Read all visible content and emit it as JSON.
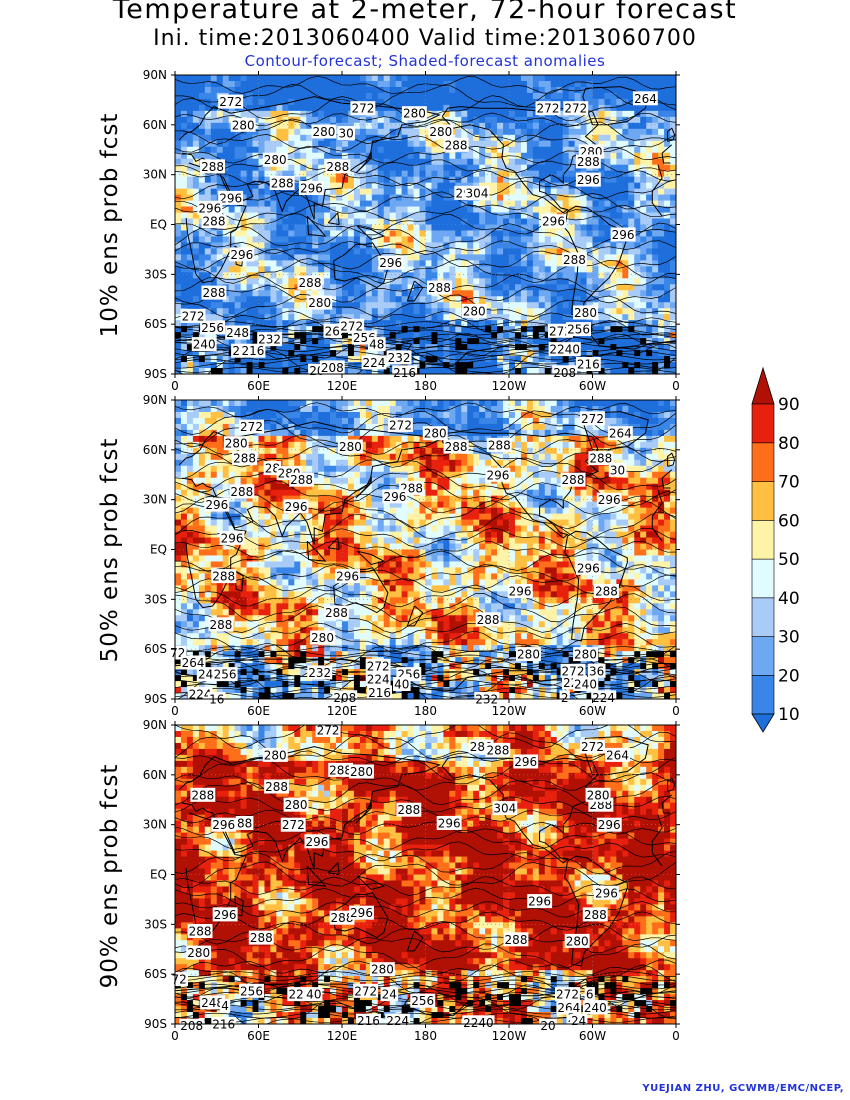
{
  "header": {
    "title": "Temperature at 2-meter, 72-hour forecast",
    "subtitle": "Ini. time:2013060400    Valid time:2013060700",
    "caption": "Contour-forecast; Shaded-forecast anomalies"
  },
  "credit": "YUEJIAN ZHU, GCWMB/EMC/NCEP,",
  "colors": {
    "scale": [
      "#1e6fdc",
      "#3a86e8",
      "#6ea8f2",
      "#a8cbf8",
      "#e0fcff",
      "#fff3a8",
      "#ffbf40",
      "#ff6f1a",
      "#e8210e",
      "#b11005"
    ],
    "caption_text": "#2233dd"
  },
  "chart_data": {
    "type": "heatmap",
    "projection": "cylindrical-equidistant",
    "x_ticks": [
      "0",
      "60E",
      "120E",
      "180",
      "120W",
      "60W",
      "0"
    ],
    "y_ticks": [
      "90N",
      "60N",
      "30N",
      "EQ",
      "30S",
      "60S",
      "90S"
    ],
    "colorbar": {
      "levels": [
        10,
        20,
        30,
        40,
        50,
        60,
        70,
        80,
        90
      ],
      "tick_labels": [
        "10",
        "20",
        "30",
        "40",
        "50",
        "60",
        "70",
        "80",
        "90"
      ],
      "extend": "both"
    },
    "panels": [
      {
        "label": "10% ens prob fcst",
        "contour_labels": [
          {
            "t": "272",
            "lon": 40,
            "lat": 74
          },
          {
            "t": "272",
            "lon": 135,
            "lat": 70
          },
          {
            "t": "280",
            "lon": 172,
            "lat": 67
          },
          {
            "t": "272",
            "lon": 268,
            "lat": 70
          },
          {
            "t": "272",
            "lon": 288,
            "lat": 70
          },
          {
            "t": "264",
            "lon": 338,
            "lat": 76
          },
          {
            "t": "280",
            "lon": 49,
            "lat": 60
          },
          {
            "t": "280",
            "lon": 107,
            "lat": 56
          },
          {
            "t": "30",
            "lon": 123,
            "lat": 55
          },
          {
            "t": "280",
            "lon": 191,
            "lat": 56
          },
          {
            "t": "288",
            "lon": 202,
            "lat": 48
          },
          {
            "t": "280",
            "lon": 299,
            "lat": 44
          },
          {
            "t": "280",
            "lon": 72,
            "lat": 39
          },
          {
            "t": "288",
            "lon": 27,
            "lat": 35
          },
          {
            "t": "288",
            "lon": 117,
            "lat": 35
          },
          {
            "t": "288",
            "lon": 297,
            "lat": 38
          },
          {
            "t": "288",
            "lon": 77,
            "lat": 25
          },
          {
            "t": "296",
            "lon": 98,
            "lat": 22
          },
          {
            "t": "296",
            "lon": 297,
            "lat": 27
          },
          {
            "t": "296",
            "lon": 40,
            "lat": 16
          },
          {
            "t": "29",
            "lon": 207,
            "lat": 19
          },
          {
            "t": "304",
            "lon": 217,
            "lat": 19
          },
          {
            "t": "296",
            "lon": 25,
            "lat": 10
          },
          {
            "t": "288",
            "lon": 28,
            "lat": 2
          },
          {
            "t": "296",
            "lon": 272,
            "lat": 2
          },
          {
            "t": "296",
            "lon": 322,
            "lat": -6
          },
          {
            "t": "296",
            "lon": 48,
            "lat": -18
          },
          {
            "t": "296",
            "lon": 155,
            "lat": -23
          },
          {
            "t": "288",
            "lon": 287,
            "lat": -21
          },
          {
            "t": "288",
            "lon": 97,
            "lat": -35
          },
          {
            "t": "288",
            "lon": 190,
            "lat": -38
          },
          {
            "t": "288",
            "lon": 28,
            "lat": -41
          },
          {
            "t": "280",
            "lon": 104,
            "lat": -47
          },
          {
            "t": "280",
            "lon": 215,
            "lat": -52
          },
          {
            "t": "280",
            "lon": 295,
            "lat": -53
          },
          {
            "t": "272",
            "lon": 13,
            "lat": -55
          },
          {
            "t": "256",
            "lon": 27,
            "lat": -62
          },
          {
            "t": "248",
            "lon": 45,
            "lat": -65
          },
          {
            "t": "232",
            "lon": 68,
            "lat": -69
          },
          {
            "t": "26",
            "lon": 113,
            "lat": -64
          },
          {
            "t": "272",
            "lon": 127,
            "lat": -61
          },
          {
            "t": "256",
            "lon": 136,
            "lat": -68
          },
          {
            "t": "48",
            "lon": 145,
            "lat": -72
          },
          {
            "t": "272",
            "lon": 277,
            "lat": -64
          },
          {
            "t": "256",
            "lon": 290,
            "lat": -63
          },
          {
            "t": "240",
            "lon": 21,
            "lat": -72
          },
          {
            "t": "2",
            "lon": 44,
            "lat": -76
          },
          {
            "t": "216",
            "lon": 56,
            "lat": -76
          },
          {
            "t": "224",
            "lon": 143,
            "lat": -83
          },
          {
            "t": "232",
            "lon": 161,
            "lat": -80
          },
          {
            "t": "2240",
            "lon": 280,
            "lat": -75
          },
          {
            "t": "216",
            "lon": 297,
            "lat": -84
          },
          {
            "t": "20",
            "lon": 102,
            "lat": -88
          },
          {
            "t": "208",
            "lon": 113,
            "lat": -86
          },
          {
            "t": "216",
            "lon": 165,
            "lat": -89
          },
          {
            "t": "208",
            "lon": 280,
            "lat": -89
          }
        ]
      },
      {
        "label": "50% ens prob fcst",
        "contour_labels": [
          {
            "t": "272",
            "lon": 55,
            "lat": 74
          },
          {
            "t": "272",
            "lon": 162,
            "lat": 75
          },
          {
            "t": "280",
            "lon": 187,
            "lat": 70
          },
          {
            "t": "272",
            "lon": 300,
            "lat": 79
          },
          {
            "t": "264",
            "lon": 320,
            "lat": 70
          },
          {
            "t": "280",
            "lon": 44,
            "lat": 64
          },
          {
            "t": "280",
            "lon": 126,
            "lat": 62
          },
          {
            "t": "288",
            "lon": 202,
            "lat": 62
          },
          {
            "t": "288",
            "lon": 50,
            "lat": 55
          },
          {
            "t": "28",
            "lon": 70,
            "lat": 49
          },
          {
            "t": "280",
            "lon": 82,
            "lat": 46
          },
          {
            "t": "288",
            "lon": 233,
            "lat": 63
          },
          {
            "t": "288",
            "lon": 306,
            "lat": 55
          },
          {
            "t": "30",
            "lon": 318,
            "lat": 48
          },
          {
            "t": "296",
            "lon": 232,
            "lat": 45
          },
          {
            "t": "288",
            "lon": 286,
            "lat": 42
          },
          {
            "t": "288",
            "lon": 91,
            "lat": 42
          },
          {
            "t": "288",
            "lon": 170,
            "lat": 37
          },
          {
            "t": "296",
            "lon": 158,
            "lat": 32
          },
          {
            "t": "288",
            "lon": 48,
            "lat": 35
          },
          {
            "t": "296",
            "lon": 30,
            "lat": 27
          },
          {
            "t": "296",
            "lon": 87,
            "lat": 26
          },
          {
            "t": "296",
            "lon": 312,
            "lat": 30
          },
          {
            "t": "296",
            "lon": 41,
            "lat": 7
          },
          {
            "t": "288",
            "lon": 35,
            "lat": -16
          },
          {
            "t": "296",
            "lon": 124,
            "lat": -16
          },
          {
            "t": "296",
            "lon": 297,
            "lat": -11
          },
          {
            "t": "296",
            "lon": 248,
            "lat": -25
          },
          {
            "t": "288",
            "lon": 310,
            "lat": -25
          },
          {
            "t": "288",
            "lon": 116,
            "lat": -38
          },
          {
            "t": "288",
            "lon": 225,
            "lat": -42
          },
          {
            "t": "288",
            "lon": 33,
            "lat": -45
          },
          {
            "t": "280",
            "lon": 106,
            "lat": -53
          },
          {
            "t": "280",
            "lon": 254,
            "lat": -63
          },
          {
            "t": "280",
            "lon": 295,
            "lat": -63
          },
          {
            "t": "72",
            "lon": 2,
            "lat": -62
          },
          {
            "t": "264",
            "lon": 13,
            "lat": -68
          },
          {
            "t": "24",
            "lon": 22,
            "lat": -75
          },
          {
            "t": "256",
            "lon": 36,
            "lat": -75
          },
          {
            "t": "232",
            "lon": 104,
            "lat": -74
          },
          {
            "t": "272",
            "lon": 146,
            "lat": -70
          },
          {
            "t": "256",
            "lon": 168,
            "lat": -75
          },
          {
            "t": "224",
            "lon": 146,
            "lat": -78
          },
          {
            "t": "40",
            "lon": 163,
            "lat": -81
          },
          {
            "t": "216",
            "lon": 147,
            "lat": -86
          },
          {
            "t": "208",
            "lon": 122,
            "lat": -89
          },
          {
            "t": "224",
            "lon": 18,
            "lat": -87
          },
          {
            "t": "16",
            "lon": 30,
            "lat": -90
          },
          {
            "t": "272",
            "lon": 286,
            "lat": -73
          },
          {
            "t": "36",
            "lon": 303,
            "lat": -73
          },
          {
            "t": "224",
            "lon": 287,
            "lat": -80
          },
          {
            "t": "240",
            "lon": 295,
            "lat": -81
          },
          {
            "t": "224",
            "lon": 308,
            "lat": -89
          },
          {
            "t": "2",
            "lon": 280,
            "lat": -89
          },
          {
            "t": "232",
            "lon": 224,
            "lat": -90
          }
        ]
      },
      {
        "label": "90% ens prob fcst",
        "contour_labels": [
          {
            "t": "272",
            "lon": 110,
            "lat": 87
          },
          {
            "t": "280",
            "lon": 220,
            "lat": 77
          },
          {
            "t": "288",
            "lon": 232,
            "lat": 75
          },
          {
            "t": "272",
            "lon": 300,
            "lat": 77
          },
          {
            "t": "264",
            "lon": 318,
            "lat": 72
          },
          {
            "t": "280",
            "lon": 72,
            "lat": 72
          },
          {
            "t": "288",
            "lon": 119,
            "lat": 63
          },
          {
            "t": "280",
            "lon": 134,
            "lat": 62
          },
          {
            "t": "296",
            "lon": 252,
            "lat": 68
          },
          {
            "t": "288",
            "lon": 73,
            "lat": 53
          },
          {
            "t": "288",
            "lon": 20,
            "lat": 48
          },
          {
            "t": "280",
            "lon": 87,
            "lat": 42
          },
          {
            "t": "288",
            "lon": 168,
            "lat": 39
          },
          {
            "t": "304",
            "lon": 237,
            "lat": 40
          },
          {
            "t": "288",
            "lon": 306,
            "lat": 42
          },
          {
            "t": "280",
            "lon": 304,
            "lat": 48
          },
          {
            "t": "296",
            "lon": 35,
            "lat": 30
          },
          {
            "t": "88",
            "lon": 50,
            "lat": 31
          },
          {
            "t": "272",
            "lon": 85,
            "lat": 30
          },
          {
            "t": "296",
            "lon": 197,
            "lat": 31
          },
          {
            "t": "296",
            "lon": 312,
            "lat": 30
          },
          {
            "t": "296",
            "lon": 102,
            "lat": 20
          },
          {
            "t": "296",
            "lon": 310,
            "lat": -11
          },
          {
            "t": "296",
            "lon": 262,
            "lat": -16
          },
          {
            "t": "296",
            "lon": 36,
            "lat": -24
          },
          {
            "t": "288",
            "lon": 120,
            "lat": -26
          },
          {
            "t": "296",
            "lon": 134,
            "lat": -23
          },
          {
            "t": "288",
            "lon": 302,
            "lat": -24
          },
          {
            "t": "288",
            "lon": 18,
            "lat": -34
          },
          {
            "t": "288",
            "lon": 62,
            "lat": -38
          },
          {
            "t": "288",
            "lon": 245,
            "lat": -39
          },
          {
            "t": "280",
            "lon": 289,
            "lat": -40
          },
          {
            "t": "280",
            "lon": 17,
            "lat": -47
          },
          {
            "t": "280",
            "lon": 149,
            "lat": -57
          },
          {
            "t": "72",
            "lon": 3,
            "lat": -63
          },
          {
            "t": "256",
            "lon": 55,
            "lat": -70
          },
          {
            "t": "240",
            "lon": 97,
            "lat": -72
          },
          {
            "t": "22",
            "lon": 87,
            "lat": -72
          },
          {
            "t": "272",
            "lon": 137,
            "lat": -70
          },
          {
            "t": "24",
            "lon": 154,
            "lat": -72
          },
          {
            "t": "256",
            "lon": 178,
            "lat": -76
          },
          {
            "t": "248",
            "lon": 27,
            "lat": -77
          },
          {
            "t": "4",
            "lon": 36,
            "lat": -79
          },
          {
            "t": "272",
            "lon": 282,
            "lat": -72
          },
          {
            "t": "6",
            "lon": 298,
            "lat": -72
          },
          {
            "t": "264",
            "lon": 283,
            "lat": -80
          },
          {
            "t": "240",
            "lon": 302,
            "lat": -80
          },
          {
            "t": "2",
            "lon": 285,
            "lat": -86
          },
          {
            "t": "24",
            "lon": 290,
            "lat": -88
          },
          {
            "t": "216",
            "lon": 139,
            "lat": -88
          },
          {
            "t": "224",
            "lon": 160,
            "lat": -88
          },
          {
            "t": "208",
            "lon": 12,
            "lat": -91
          },
          {
            "t": "216",
            "lon": 35,
            "lat": -90
          },
          {
            "t": "2240",
            "lon": 218,
            "lat": -89
          },
          {
            "t": "20",
            "lon": 268,
            "lat": -91
          }
        ]
      }
    ]
  }
}
